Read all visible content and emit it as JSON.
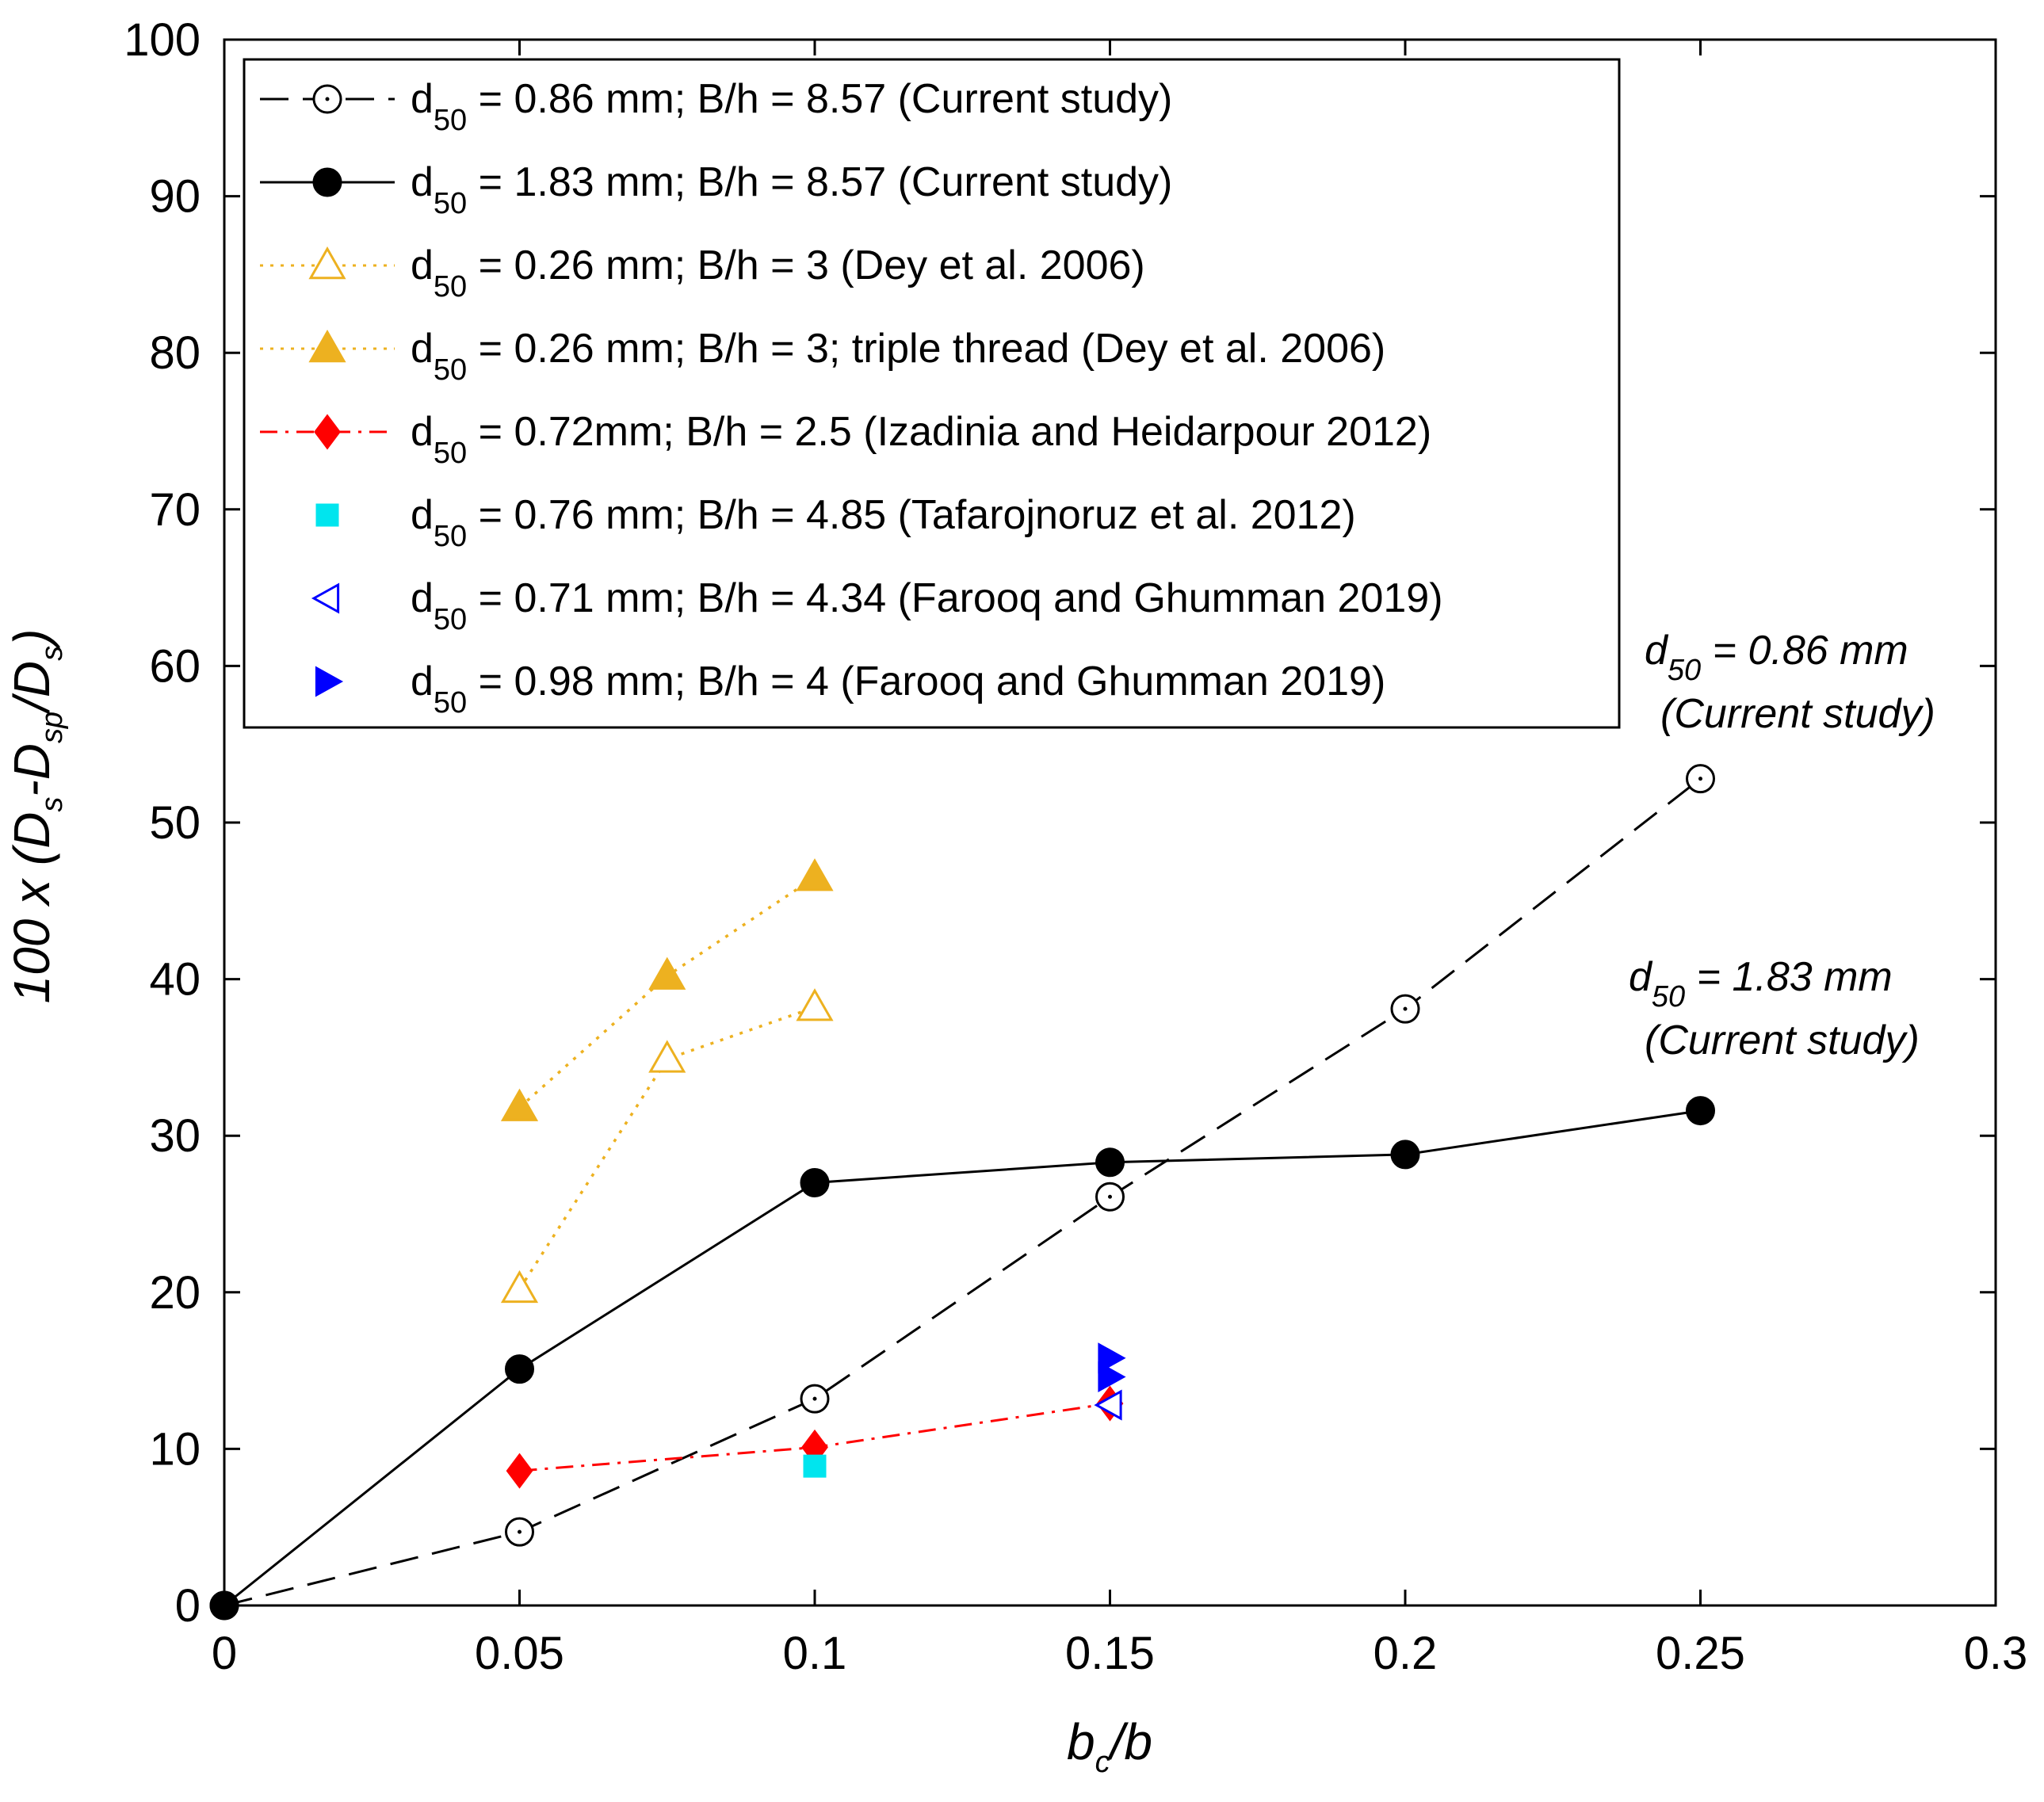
{
  "chart_data": {
    "type": "line",
    "xlabel": {
      "base": "b",
      "sub": "c",
      "tail": "/b"
    },
    "ylabel": {
      "prefix": "100 x (D",
      "sub1": "s",
      "mid": "-D",
      "sub2": "sp",
      "mid2": "/D",
      "sub3": "s",
      "suffix": ")"
    },
    "xlim": [
      0,
      0.3
    ],
    "ylim": [
      0,
      100
    ],
    "xticks": [
      0,
      0.05,
      0.1,
      0.15,
      0.2,
      0.25,
      0.3
    ],
    "xtick_labels": [
      "0",
      "0.05",
      "0.1",
      "0.15",
      "0.2",
      "0.25",
      "0.3"
    ],
    "yticks": [
      0,
      10,
      20,
      30,
      40,
      50,
      60,
      70,
      80,
      90,
      100
    ],
    "ytick_labels": [
      "0",
      "10",
      "20",
      "30",
      "40",
      "50",
      "60",
      "70",
      "80",
      "90",
      "100"
    ],
    "grid": false,
    "legend_position": "top-left",
    "series": [
      {
        "name": "d50 = 0.86 mm; B/h = 8.57 (Current study)",
        "legend": {
          "pre": "d",
          "sub": "50",
          "post": " = 0.86 mm; B/h = 8.57 (Current study)"
        },
        "color": "#000000",
        "line": "dashed",
        "marker": "circle-dot",
        "filled": false,
        "x": [
          0,
          0.05,
          0.1,
          0.15,
          0.2,
          0.25
        ],
        "y": [
          0,
          4.7,
          13.2,
          26.1,
          38.1,
          52.8
        ]
      },
      {
        "name": "d50 = 1.83 mm; B/h = 8.57  (Current study)",
        "legend": {
          "pre": "d",
          "sub": "50",
          "post": " = 1.83 mm; B/h = 8.57  (Current study)"
        },
        "color": "#000000",
        "line": "solid",
        "marker": "circle",
        "filled": true,
        "x": [
          0,
          0.05,
          0.1,
          0.15,
          0.2,
          0.25
        ],
        "y": [
          0,
          15.1,
          27.0,
          28.3,
          28.8,
          31.6
        ]
      },
      {
        "name": "d50 = 0.26 mm; B/h = 3 (Dey et al. 2006)",
        "legend": {
          "pre": "d",
          "sub": "50",
          "post": " = 0.26 mm; B/h = 3 (Dey et al. 2006)"
        },
        "color": "#EDB120",
        "line": "dotted",
        "marker": "triangle-up",
        "filled": false,
        "x": [
          0.05,
          0.075,
          0.1
        ],
        "y": [
          20.2,
          34.9,
          38.2
        ]
      },
      {
        "name": "d50 = 0.26 mm; B/h = 3; triple thread (Dey et al. 2006)",
        "legend": {
          "pre": "d",
          "sub": "50",
          "post": " = 0.26 mm; B/h = 3; triple thread (Dey et al. 2006)"
        },
        "color": "#EDB120",
        "line": "dotted",
        "marker": "triangle-up",
        "filled": true,
        "x": [
          0.05,
          0.075,
          0.1
        ],
        "y": [
          31.8,
          40.2,
          46.5
        ]
      },
      {
        "name": "d50 = 0.72mm; B/h = 2.5 (Izadinia and Heidarpour 2012)",
        "legend": {
          "pre": "d",
          "sub": "50",
          "post": " = 0.72mm; B/h = 2.5 (Izadinia and Heidarpour 2012)"
        },
        "color": "#FF0000",
        "line": "dashdot",
        "marker": "diamond",
        "filled": true,
        "x": [
          0.05,
          0.1,
          0.15
        ],
        "y": [
          8.6,
          10.1,
          12.9
        ]
      },
      {
        "name": "d50 = 0.76 mm; B/h = 4.85 (Tafarojnoruz et al. 2012)",
        "legend": {
          "pre": "d",
          "sub": "50",
          "post": " = 0.76 mm; B/h = 4.85 (Tafarojnoruz et al. 2012)"
        },
        "color": "#00E5EE",
        "line": "none",
        "marker": "square",
        "filled": true,
        "x": [
          0.1
        ],
        "y": [
          8.9
        ]
      },
      {
        "name": "d50 = 0.71 mm; B/h = 4.34 (Farooq and Ghumman 2019)",
        "legend": {
          "pre": "d",
          "sub": "50",
          "post": " = 0.71 mm; B/h = 4.34 (Farooq and Ghumman 2019)"
        },
        "color": "#0000FF",
        "line": "none",
        "marker": "triangle-left",
        "filled": false,
        "x": [
          0.15
        ],
        "y": [
          12.8
        ]
      },
      {
        "name": "d50 = 0.98 mm; B/h = 4 (Farooq and Ghumman 2019)",
        "legend": {
          "pre": "d",
          "sub": "50",
          "post": " = 0.98 mm; B/h = 4 (Farooq and Ghumman 2019)"
        },
        "color": "#0000FF",
        "line": "none",
        "marker": "triangle-right",
        "filled": true,
        "x": [
          0.15,
          0.15
        ],
        "y": [
          14.6,
          15.8
        ]
      }
    ],
    "annotations": [
      {
        "pre": "d",
        "sub": "50",
        "post": " = 0.86 mm",
        "line2": "(Current study)"
      },
      {
        "pre": "d",
        "sub": "50",
        "post": " = 1.83 mm",
        "line2": "(Current study)"
      }
    ]
  }
}
